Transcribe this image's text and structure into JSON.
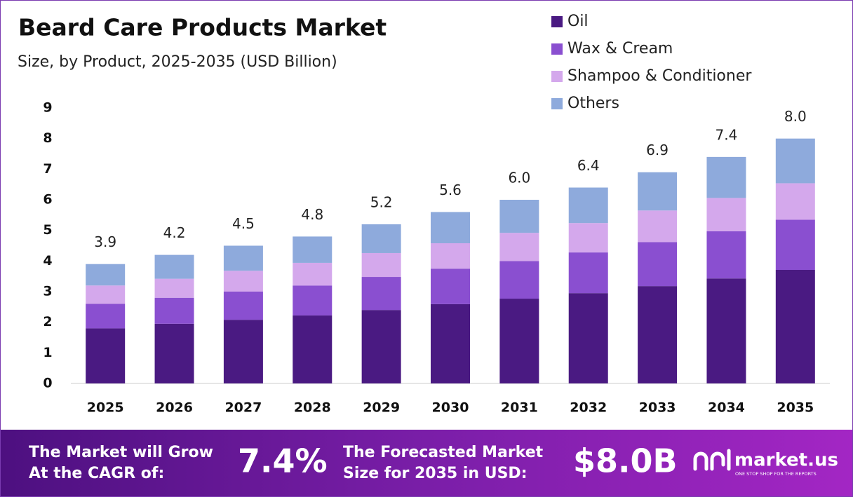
{
  "chart_data": {
    "type": "stacked_bar",
    "title": "Beard Care Products Market",
    "subtitle": "Size, by Product, 2025-2035 (USD Billion)",
    "categories": [
      "2025",
      "2026",
      "2027",
      "2028",
      "2029",
      "2030",
      "2031",
      "2032",
      "2033",
      "2034",
      "2035"
    ],
    "series": [
      {
        "name": "Oil",
        "color": "#4a1a82",
        "values": [
          1.8,
          1.95,
          2.08,
          2.22,
          2.4,
          2.59,
          2.77,
          2.95,
          3.18,
          3.43,
          3.71
        ]
      },
      {
        "name": "Wax & Cream",
        "color": "#8a4fd0",
        "values": [
          0.8,
          0.85,
          0.92,
          0.98,
          1.08,
          1.16,
          1.23,
          1.33,
          1.44,
          1.54,
          1.64
        ]
      },
      {
        "name": "Shampoo & Conditioner",
        "color": "#d4a8ec",
        "values": [
          0.6,
          0.62,
          0.68,
          0.74,
          0.78,
          0.83,
          0.92,
          0.96,
          1.03,
          1.09,
          1.19
        ]
      },
      {
        "name": "Others",
        "color": "#8eaadc",
        "values": [
          0.7,
          0.78,
          0.82,
          0.86,
          0.94,
          1.02,
          1.08,
          1.16,
          1.25,
          1.34,
          1.46
        ]
      }
    ],
    "totals": {
      "values": [
        3.9,
        4.2,
        4.5,
        4.8,
        5.2,
        5.6,
        6.0,
        6.4,
        6.9,
        7.4,
        8.0
      ],
      "value_labels": [
        "3.9",
        "4.2",
        "4.5",
        "4.8",
        "5.2",
        "5.6",
        "6.0",
        "6.4",
        "6.9",
        "7.4",
        "8.0"
      ]
    },
    "ylim": [
      0,
      9
    ],
    "yticks": [
      0,
      1,
      2,
      3,
      4,
      5,
      6,
      7,
      8,
      9
    ],
    "grid": false
  },
  "footer": {
    "cagr_label": [
      "The Market will Grow",
      "At the CAGR of:"
    ],
    "cagr_value": "7.4%",
    "size_label": [
      "The Forecasted Market",
      "Size for 2035 in USD:"
    ],
    "size_value": "$8.0B",
    "brand": "market.us",
    "tagline": "ONE STOP SHOP FOR THE REPORTS"
  }
}
